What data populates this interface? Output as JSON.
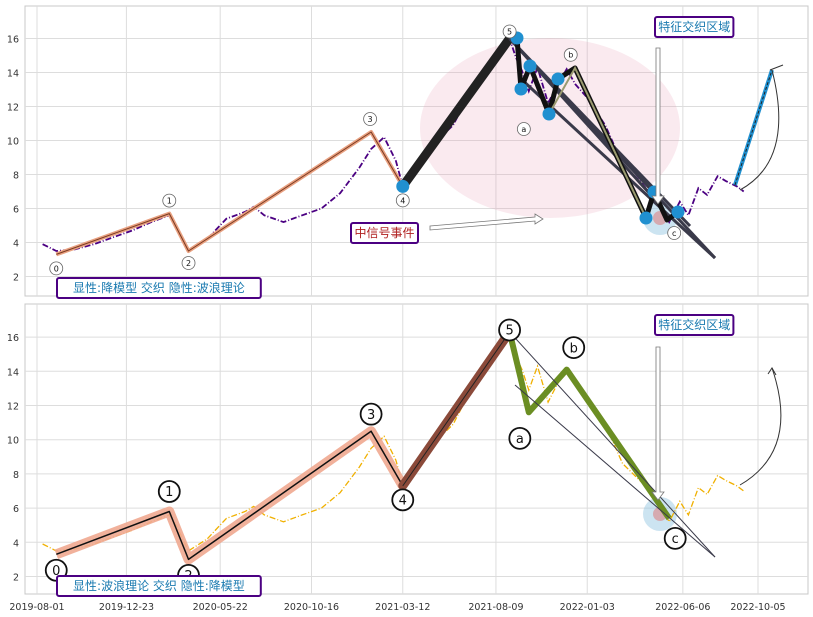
{
  "chart_data": [
    {
      "type": "line",
      "title": "",
      "xlabel": "",
      "ylabel": "",
      "ylim": [
        1,
        17.8
      ],
      "yticks": [
        2,
        4,
        6,
        8,
        10,
        12,
        14,
        16
      ],
      "grid": true,
      "label_box": "显性:降模型 交织 隐性:波浪理论",
      "feature_label": "特征交织区域",
      "event_label": "中信号事件",
      "series": [
        {
          "style": "dashdot",
          "color": "#4b0082",
          "x": [
            "2019-08-10",
            "2019-09-01",
            "2019-10-01",
            "2019-11-01",
            "2019-12-01",
            "2020-01-01",
            "2020-02-01",
            "2020-03-01",
            "2020-03-12",
            "2020-04-01",
            "2020-05-01",
            "2020-06-01",
            "2020-07-01",
            "2020-07-15",
            "2020-08-01",
            "2020-09-01",
            "2020-10-01",
            "2020-11-01",
            "2020-12-01",
            "2021-01-01",
            "2021-01-20",
            "2021-02-01",
            "2021-02-10",
            "2021-03-01",
            "2021-03-12",
            "2021-04-01",
            "2021-05-01",
            "2021-06-01",
            "2021-07-01",
            "2021-08-01",
            "2021-08-31",
            "2021-09-10",
            "2021-09-20",
            "2021-10-01",
            "2021-10-15",
            "2021-11-01",
            "2021-11-15",
            "2021-12-01",
            "2021-12-15",
            "2022-01-01",
            "2022-02-01",
            "2022-03-01",
            "2022-04-01",
            "2022-05-01",
            "2022-05-15",
            "2022-06-01",
            "2022-06-15",
            "2022-07-01",
            "2022-07-15",
            "2022-08-01",
            "2022-08-15",
            "2022-09-01",
            "2022-09-12"
          ],
          "y": [
            3.9,
            3.5,
            3.6,
            3.9,
            4.3,
            4.7,
            5.2,
            5.6,
            5.0,
            3.5,
            4.2,
            5.4,
            5.8,
            6.1,
            5.6,
            5.2,
            5.6,
            6.0,
            6.9,
            8.4,
            9.5,
            9.9,
            10.2,
            8.8,
            7.3,
            8.2,
            9.8,
            10.9,
            13.0,
            14.7,
            16.0,
            14.9,
            14.1,
            12.9,
            14.3,
            12.2,
            13.2,
            14.2,
            13.3,
            12.6,
            10.9,
            8.6,
            7.5,
            6.1,
            5.2,
            6.4,
            5.6,
            7.2,
            6.8,
            7.9,
            7.6,
            7.3,
            7.0
          ]
        }
      ],
      "wave_labels": [
        {
          "label": "0",
          "x": "2019-09-01",
          "y": 3.3
        },
        {
          "label": "1",
          "x": "2020-03-01",
          "y": 5.7
        },
        {
          "label": "2",
          "x": "2020-04-01",
          "y": 3.5
        },
        {
          "label": "3",
          "x": "2021-01-20",
          "y": 10.5
        },
        {
          "label": "4",
          "x": "2021-03-12",
          "y": 7.3
        },
        {
          "label": "5",
          "x": "2021-08-31",
          "y": 16.0
        },
        {
          "label": "a",
          "x": "2021-10-01",
          "y": 11.5
        },
        {
          "label": "b",
          "x": "2021-12-01",
          "y": 14.1
        },
        {
          "label": "c",
          "x": "2022-05-15",
          "y": 5.5
        }
      ]
    },
    {
      "type": "line",
      "title": "",
      "xlabel": "",
      "ylabel": "",
      "ylim": [
        1,
        17.8
      ],
      "yticks": [
        2,
        4,
        6,
        8,
        10,
        12,
        14,
        16
      ],
      "xticks": [
        "2019-08-01",
        "2019-12-23",
        "2020-05-22",
        "2020-10-16",
        "2021-03-12",
        "2021-08-09",
        "2022-01-03",
        "2022-06-06",
        "2022-10-05"
      ],
      "grid": true,
      "label_box": "显性:波浪理论 交织 隐性:降模型",
      "feature_label": "特征交织区域",
      "series": [
        {
          "style": "dashdot",
          "color": "#f0b000",
          "x": [
            "2019-08-10",
            "2019-09-01",
            "2019-10-01",
            "2019-11-01",
            "2019-12-01",
            "2020-01-01",
            "2020-02-01",
            "2020-03-01",
            "2020-03-12",
            "2020-04-01",
            "2020-05-01",
            "2020-06-01",
            "2020-07-01",
            "2020-07-15",
            "2020-08-01",
            "2020-09-01",
            "2020-10-01",
            "2020-11-01",
            "2020-12-01",
            "2021-01-01",
            "2021-01-20",
            "2021-02-01",
            "2021-02-10",
            "2021-03-01",
            "2021-03-12",
            "2021-04-01",
            "2021-05-01",
            "2021-06-01",
            "2021-07-01",
            "2021-08-01",
            "2021-08-31",
            "2021-09-10",
            "2021-09-20",
            "2021-10-01",
            "2021-10-15",
            "2021-11-01",
            "2021-11-15",
            "2021-12-01",
            "2021-12-15",
            "2022-01-01",
            "2022-02-01",
            "2022-03-01",
            "2022-04-01",
            "2022-05-01",
            "2022-05-15",
            "2022-06-01",
            "2022-06-15",
            "2022-07-01",
            "2022-07-15",
            "2022-08-01",
            "2022-08-15",
            "2022-09-01",
            "2022-09-12"
          ],
          "y": [
            3.9,
            3.5,
            3.6,
            3.9,
            4.3,
            4.7,
            5.2,
            5.6,
            5.0,
            3.5,
            4.2,
            5.4,
            5.8,
            6.1,
            5.6,
            5.2,
            5.6,
            6.0,
            6.9,
            8.4,
            9.5,
            9.9,
            10.2,
            8.8,
            7.3,
            8.2,
            9.8,
            10.9,
            13.0,
            14.7,
            16.0,
            14.9,
            14.1,
            12.9,
            14.3,
            12.2,
            13.2,
            14.2,
            13.3,
            12.6,
            10.9,
            8.6,
            7.5,
            6.1,
            5.2,
            6.4,
            5.6,
            7.2,
            6.8,
            7.9,
            7.6,
            7.3,
            7.0
          ]
        }
      ],
      "wave_labels": [
        {
          "label": "0",
          "x": "2019-09-01",
          "y": 3.3
        },
        {
          "label": "1",
          "x": "2020-03-01",
          "y": 5.8
        },
        {
          "label": "2",
          "x": "2020-04-01",
          "y": 3.0
        },
        {
          "label": "3",
          "x": "2021-01-20",
          "y": 10.5
        },
        {
          "label": "4",
          "x": "2021-03-12",
          "y": 7.3
        },
        {
          "label": "5",
          "x": "2021-08-31",
          "y": 16.3
        },
        {
          "label": "a",
          "x": "2021-10-01",
          "y": 11.6
        },
        {
          "label": "b",
          "x": "2021-12-01",
          "y": 14.1
        },
        {
          "label": "c",
          "x": "2022-05-15",
          "y": 5.4
        }
      ]
    }
  ]
}
